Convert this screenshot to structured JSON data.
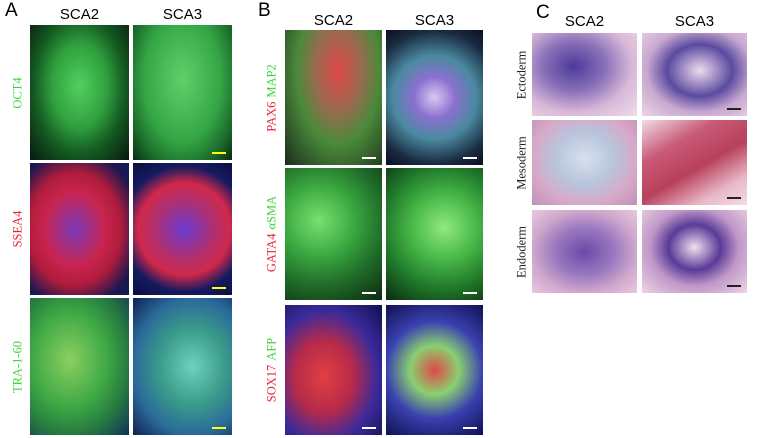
{
  "panels": [
    {
      "label": "A",
      "columns": [
        "SCA2",
        "SCA3"
      ],
      "rows": [
        {
          "markers": [
            {
              "text": "OCT4",
              "color": "#3fd43f"
            }
          ]
        },
        {
          "markers": [
            {
              "text": "SSEA4",
              "color": "#e8203a"
            }
          ]
        },
        {
          "markers": [
            {
              "text": "TRA-1-60",
              "color": "#3fd43f"
            }
          ]
        }
      ]
    },
    {
      "label": "B",
      "columns": [
        "SCA2",
        "SCA3"
      ],
      "rows": [
        {
          "markers": [
            {
              "text": "PAX6",
              "color": "#e8203a"
            },
            {
              "text": "MAP2",
              "color": "#3fd43f"
            }
          ]
        },
        {
          "markers": [
            {
              "text": "GATA4",
              "color": "#e8203a"
            },
            {
              "text": "αSMA",
              "color": "#3fd43f"
            }
          ]
        },
        {
          "markers": [
            {
              "text": "SOX17",
              "color": "#e8203a"
            },
            {
              "text": "AFP",
              "color": "#3fd43f"
            }
          ]
        }
      ]
    },
    {
      "label": "C",
      "columns": [
        "SCA2",
        "SCA3"
      ],
      "rows": [
        {
          "markers": [
            {
              "text": "Ectoderm",
              "color": "#222222"
            }
          ]
        },
        {
          "markers": [
            {
              "text": "Mesoderm",
              "color": "#222222"
            }
          ]
        },
        {
          "markers": [
            {
              "text": "Endoderm",
              "color": "#222222"
            }
          ]
        }
      ]
    }
  ]
}
